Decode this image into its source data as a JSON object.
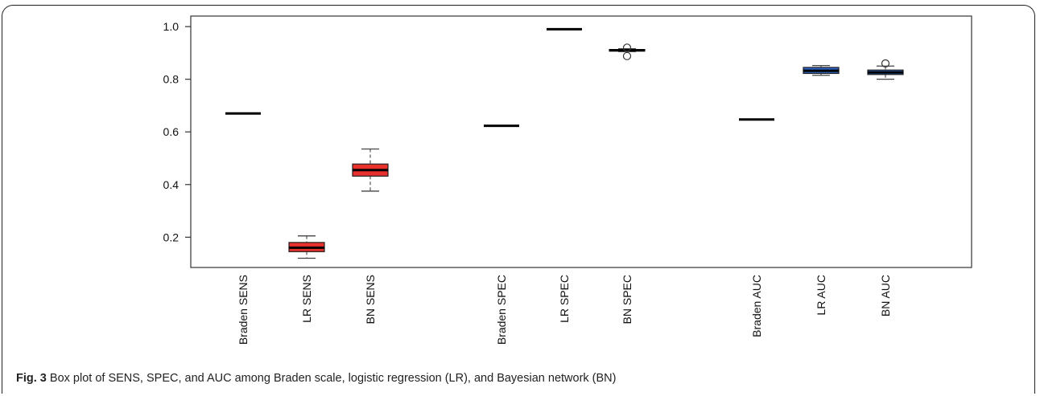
{
  "caption": {
    "label": "Fig. 3",
    "text": " Box plot of SENS, SPEC, and AUC among Braden scale, logistic regression (LR), and Bayesian network (BN)"
  },
  "chart_data": {
    "type": "box",
    "title": "",
    "xlabel": "",
    "ylabel": "",
    "ylim": [
      0.085,
      1.04
    ],
    "yticks": [
      0.2,
      0.4,
      0.6,
      0.8,
      1.0
    ],
    "ytick_labels": [
      "0.2",
      "0.4",
      "0.6",
      "0.8",
      "1.0"
    ],
    "grid": false,
    "legend": "none",
    "categories": [
      "Braden SENS",
      "LR SENS",
      "BN SENS",
      "Braden SPEC",
      "LR SPEC",
      "BN SPEC",
      "Braden AUC",
      "LR AUC",
      "BN AUC"
    ],
    "boxes": [
      {
        "label": "Braden SENS",
        "min": 0.67,
        "q1": 0.67,
        "median": 0.67,
        "q3": 0.67,
        "max": 0.67,
        "outliers": [],
        "color": "#000000"
      },
      {
        "label": "LR SENS",
        "min": 0.12,
        "q1": 0.145,
        "median": 0.16,
        "q3": 0.18,
        "max": 0.205,
        "outliers": [],
        "color": "#e8302c"
      },
      {
        "label": "BN SENS",
        "min": 0.375,
        "q1": 0.432,
        "median": 0.455,
        "q3": 0.478,
        "max": 0.535,
        "outliers": [],
        "color": "#e8302c"
      },
      {
        "label": "Braden SPEC",
        "min": 0.623,
        "q1": 0.623,
        "median": 0.623,
        "q3": 0.623,
        "max": 0.623,
        "outliers": [],
        "color": "#000000"
      },
      {
        "label": "LR SPEC",
        "min": 0.99,
        "q1": 0.99,
        "median": 0.99,
        "q3": 0.99,
        "max": 0.99,
        "outliers": [],
        "color": "#000000"
      },
      {
        "label": "BN SPEC",
        "min": 0.905,
        "q1": 0.907,
        "median": 0.91,
        "q3": 0.913,
        "max": 0.916,
        "outliers": [
          0.888,
          0.92
        ],
        "color": "#2e62c8"
      },
      {
        "label": "Braden AUC",
        "min": 0.647,
        "q1": 0.647,
        "median": 0.647,
        "q3": 0.647,
        "max": 0.647,
        "outliers": [],
        "color": "#000000"
      },
      {
        "label": "LR AUC",
        "min": 0.815,
        "q1": 0.822,
        "median": 0.832,
        "q3": 0.845,
        "max": 0.852,
        "outliers": [],
        "color": "#2e62c8"
      },
      {
        "label": "BN AUC",
        "min": 0.8,
        "q1": 0.818,
        "median": 0.826,
        "q3": 0.835,
        "max": 0.85,
        "outliers": [
          0.86
        ],
        "color": "#2e62c8"
      }
    ]
  }
}
